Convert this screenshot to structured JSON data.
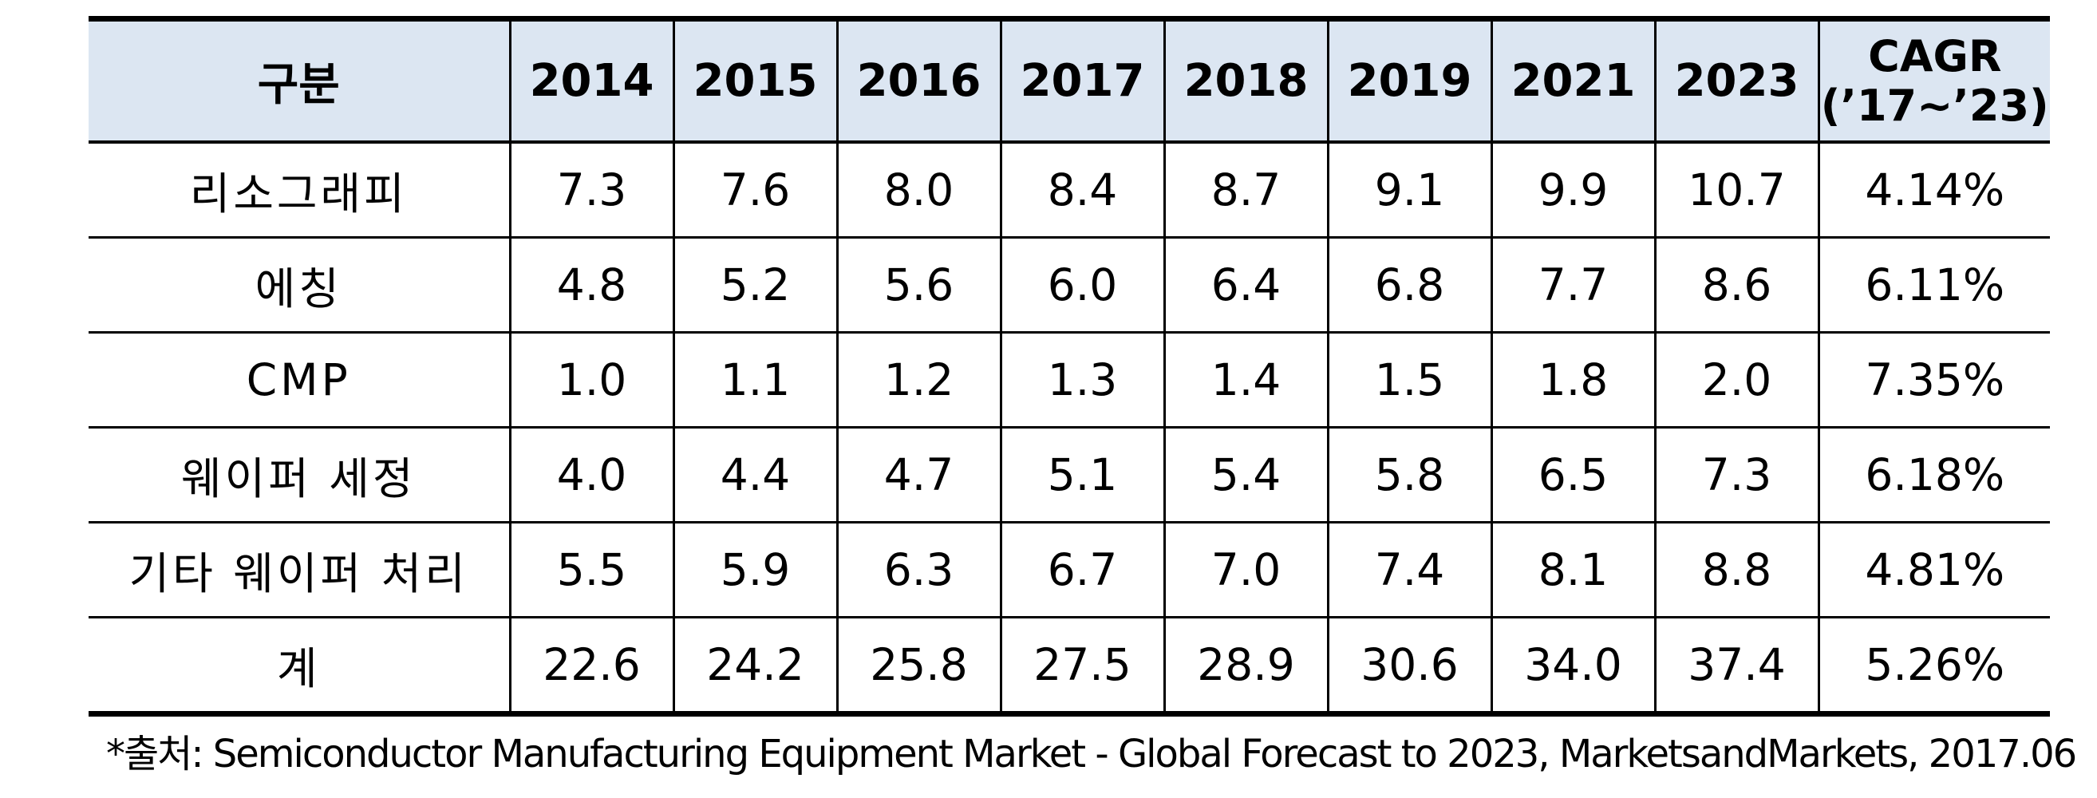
{
  "table": {
    "header": {
      "label": "구분",
      "years": [
        "2014",
        "2015",
        "2016",
        "2017",
        "2018",
        "2019",
        "2021",
        "2023"
      ],
      "cagr_line1": "CAGR",
      "cagr_line2": "(’17~’23)"
    },
    "rows": [
      {
        "label": "리소그래피",
        "values": [
          "7.3",
          "7.6",
          "8.0",
          "8.4",
          "8.7",
          "9.1",
          "9.9",
          "10.7"
        ],
        "cagr": "4.14%"
      },
      {
        "label": "에칭",
        "values": [
          "4.8",
          "5.2",
          "5.6",
          "6.0",
          "6.4",
          "6.8",
          "7.7",
          "8.6"
        ],
        "cagr": "6.11%"
      },
      {
        "label": "CMP",
        "values": [
          "1.0",
          "1.1",
          "1.2",
          "1.3",
          "1.4",
          "1.5",
          "1.8",
          "2.0"
        ],
        "cagr": "7.35%"
      },
      {
        "label": "웨이퍼 세정",
        "values": [
          "4.0",
          "4.4",
          "4.7",
          "5.1",
          "5.4",
          "5.8",
          "6.5",
          "7.3"
        ],
        "cagr": "6.18%"
      },
      {
        "label": "기타 웨이퍼 처리",
        "values": [
          "5.5",
          "5.9",
          "6.3",
          "6.7",
          "7.0",
          "7.4",
          "8.1",
          "8.8"
        ],
        "cagr": "4.81%"
      },
      {
        "label": "계",
        "values": [
          "22.6",
          "24.2",
          "25.8",
          "27.5",
          "28.9",
          "30.6",
          "34.0",
          "37.4"
        ],
        "cagr": "5.26%"
      }
    ]
  },
  "source": "*출처: Semiconductor Manufacturing Equipment Market - Global Forecast to 2023, MarketsandMarkets, 2017.06",
  "colors": {
    "header_background": "#dce6f2",
    "border": "#000000"
  }
}
